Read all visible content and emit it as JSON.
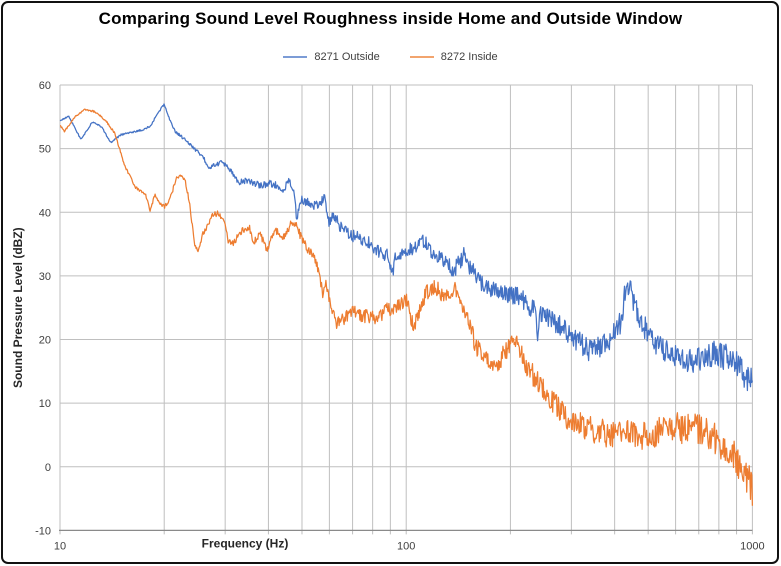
{
  "chart_data": {
    "type": "line",
    "title": "Comparing Sound Level Roughness inside Home and Outside Window",
    "xlabel": "Frequency (Hz)",
    "ylabel": "Sound Pressure Level (dBZ)",
    "x_scale": "log",
    "xlim": [
      10,
      1000
    ],
    "ylim": [
      -10,
      60
    ],
    "x_ticks": [
      10,
      100,
      1000
    ],
    "y_ticks": [
      60,
      50,
      40,
      30,
      20,
      10,
      0,
      -10
    ],
    "grid": true,
    "legend_position": "top",
    "colors": {
      "grid": "#bfbfbf",
      "axis": "#8a8a8a",
      "tick_text": "#404040",
      "title_text": "#000000",
      "background": "#ffffff",
      "frame_border": "#111111"
    },
    "series": [
      {
        "name": "8271 Outside",
        "color": "#4472C4",
        "anchors": [
          [
            10,
            54.4
          ],
          [
            10.6,
            55.1
          ],
          [
            11.5,
            51.4
          ],
          [
            12.4,
            54.2
          ],
          [
            13.2,
            53.4
          ],
          [
            14,
            50.9
          ],
          [
            15,
            52.2
          ],
          [
            16.3,
            52.6
          ],
          [
            17.4,
            53
          ],
          [
            18.3,
            53.6
          ],
          [
            19,
            55.3
          ],
          [
            20,
            57
          ],
          [
            20.7,
            54.7
          ],
          [
            21.5,
            52.7
          ],
          [
            23,
            51.4
          ],
          [
            24,
            50.4
          ],
          [
            26,
            48.5
          ],
          [
            27,
            46.9
          ],
          [
            28,
            47.4
          ],
          [
            29.3,
            47.9
          ],
          [
            31,
            46.8
          ],
          [
            32,
            45.4
          ],
          [
            33,
            44.7
          ],
          [
            35,
            45
          ],
          [
            36.5,
            44.6
          ],
          [
            38,
            44.1
          ],
          [
            40,
            44.6
          ],
          [
            42,
            44.3
          ],
          [
            43.2,
            43.3
          ],
          [
            44.6,
            44
          ],
          [
            46,
            44.9
          ],
          [
            47.5,
            42.6
          ],
          [
            48.3,
            38.9
          ],
          [
            49.2,
            41.5
          ],
          [
            50,
            41.9
          ],
          [
            53,
            41.4
          ],
          [
            56,
            40.9
          ],
          [
            58,
            42.6
          ],
          [
            60,
            38.2
          ],
          [
            61.5,
            39.8
          ],
          [
            63,
            38.8
          ],
          [
            64.5,
            37.6
          ],
          [
            67,
            36.9
          ],
          [
            70,
            36.3
          ],
          [
            74,
            35.9
          ],
          [
            79,
            35.1
          ],
          [
            84,
            33.6
          ],
          [
            88,
            33.2
          ],
          [
            91.5,
            30.8
          ],
          [
            93,
            32.9
          ],
          [
            98,
            33.3
          ],
          [
            103,
            34.1
          ],
          [
            107,
            34.8
          ],
          [
            110,
            35.2
          ],
          [
            113,
            35.4
          ],
          [
            117,
            34.2
          ],
          [
            121,
            33.5
          ],
          [
            125,
            32.8
          ],
          [
            130,
            32.2
          ],
          [
            134,
            31.7
          ],
          [
            137,
            29.6
          ],
          [
            140,
            31.9
          ],
          [
            144,
            32.3
          ],
          [
            148,
            33.8
          ],
          [
            151,
            31.4
          ],
          [
            156,
            30.7
          ],
          [
            160,
            29.8
          ],
          [
            164,
            28.9
          ],
          [
            170,
            28.3
          ],
          [
            175,
            28
          ],
          [
            181,
            27.9
          ],
          [
            187,
            27.8
          ],
          [
            194,
            27.3
          ],
          [
            200,
            27
          ],
          [
            207,
            26.8
          ],
          [
            213,
            26.7
          ],
          [
            221,
            25.8
          ],
          [
            228,
            25.1
          ],
          [
            236,
            24.6
          ],
          [
            240,
            19.8
          ],
          [
            244,
            24.2
          ],
          [
            252,
            23.7
          ],
          [
            260,
            23.3
          ],
          [
            268,
            22.8
          ],
          [
            277,
            22.3
          ],
          [
            286,
            21.6
          ],
          [
            296,
            21
          ],
          [
            306,
            20.2
          ],
          [
            317,
            19.5
          ],
          [
            328,
            18.8
          ],
          [
            339,
            18.3
          ],
          [
            350,
            18.5
          ],
          [
            363,
            18.8
          ],
          [
            375,
            19.3
          ],
          [
            388,
            19.9
          ],
          [
            400,
            21
          ],
          [
            415,
            22.5
          ],
          [
            423,
            25.2
          ],
          [
            429,
            27.2
          ],
          [
            437,
            28.4
          ],
          [
            444,
            28
          ],
          [
            451,
            26.8
          ],
          [
            459,
            25.6
          ],
          [
            467,
            24.3
          ],
          [
            475,
            23.1
          ],
          [
            490,
            21.7
          ],
          [
            509,
            20.4
          ],
          [
            526,
            19.5
          ],
          [
            544,
            18.8
          ],
          [
            563,
            18.2
          ],
          [
            582,
            17.8
          ],
          [
            602,
            17.5
          ],
          [
            623,
            17.2
          ],
          [
            644,
            16.9
          ],
          [
            666,
            16.7
          ],
          [
            688,
            16.9
          ],
          [
            712,
            17.2
          ],
          [
            736,
            17.5
          ],
          [
            762,
            17.8
          ],
          [
            788,
            17.6
          ],
          [
            815,
            17.5
          ],
          [
            843,
            17.1
          ],
          [
            872,
            16.7
          ],
          [
            902,
            15.9
          ],
          [
            933,
            15.1
          ],
          [
            965,
            14.1
          ],
          [
            1000,
            13.2
          ]
        ],
        "noise_envelope": [
          [
            10,
            0.1
          ],
          [
            20,
            0.15
          ],
          [
            30,
            0.4
          ],
          [
            45,
            0.6
          ],
          [
            60,
            0.9
          ],
          [
            80,
            1.0
          ],
          [
            100,
            1.1
          ],
          [
            140,
            1.2
          ],
          [
            200,
            1.4
          ],
          [
            300,
            1.7
          ],
          [
            400,
            1.9
          ],
          [
            600,
            2.0
          ],
          [
            800,
            2.1
          ],
          [
            1000,
            2.2
          ]
        ]
      },
      {
        "name": "8272 Inside",
        "color": "#ED7D31",
        "anchors": [
          [
            10,
            53.7
          ],
          [
            10.3,
            52.7
          ],
          [
            11.05,
            55
          ],
          [
            11.8,
            56.2
          ],
          [
            12.6,
            55.8
          ],
          [
            13.5,
            54.5
          ],
          [
            14.4,
            52.4
          ],
          [
            15.4,
            47.2
          ],
          [
            16.5,
            44
          ],
          [
            17.7,
            42.7
          ],
          [
            18.2,
            40.3
          ],
          [
            18.8,
            42.7
          ],
          [
            19.4,
            41.4
          ],
          [
            20.1,
            40.9
          ],
          [
            20.8,
            42.2
          ],
          [
            21.7,
            45.3
          ],
          [
            22.2,
            45.8
          ],
          [
            23,
            44.8
          ],
          [
            23.7,
            41.4
          ],
          [
            24.5,
            34.6
          ],
          [
            25.1,
            33.8
          ],
          [
            25.9,
            36.7
          ],
          [
            26.8,
            38
          ],
          [
            27.7,
            39.6
          ],
          [
            28.7,
            39.8
          ],
          [
            29.7,
            38.8
          ],
          [
            30.6,
            35.6
          ],
          [
            31.7,
            34.9
          ],
          [
            32.8,
            36.7
          ],
          [
            34,
            37.2
          ],
          [
            35.2,
            37.7
          ],
          [
            36.3,
            35.2
          ],
          [
            37.8,
            36.7
          ],
          [
            39.6,
            33.8
          ],
          [
            41,
            36.2
          ],
          [
            42.5,
            37.2
          ],
          [
            43.7,
            35.6
          ],
          [
            45.3,
            37.2
          ],
          [
            47,
            38.5
          ],
          [
            48,
            38
          ],
          [
            49.1,
            36.7
          ],
          [
            51.4,
            34.6
          ],
          [
            53.2,
            33.8
          ],
          [
            55.2,
            31.5
          ],
          [
            56.5,
            29
          ],
          [
            57.5,
            27.2
          ],
          [
            58.5,
            28.9
          ],
          [
            60,
            26
          ],
          [
            61.5,
            24
          ],
          [
            63,
            22.5
          ],
          [
            65,
            23
          ],
          [
            67,
            23.5
          ],
          [
            69,
            24.1
          ],
          [
            71,
            24.3
          ],
          [
            73,
            24
          ],
          [
            75,
            23.5
          ],
          [
            77,
            23.8
          ],
          [
            79,
            23.6
          ],
          [
            81,
            23.2
          ],
          [
            84,
            23.7
          ],
          [
            86,
            24.3
          ],
          [
            88,
            25
          ],
          [
            90,
            24.6
          ],
          [
            92,
            24.4
          ],
          [
            94,
            25
          ],
          [
            96,
            25.5
          ],
          [
            98,
            26
          ],
          [
            100,
            26.2
          ],
          [
            102,
            24.5
          ],
          [
            105,
            22
          ],
          [
            107,
            23
          ],
          [
            110,
            25
          ],
          [
            112,
            26.3
          ],
          [
            114,
            27.2
          ],
          [
            117,
            27.8
          ],
          [
            121,
            28.4
          ],
          [
            125,
            27.5
          ],
          [
            128,
            26.6
          ],
          [
            130,
            26.3
          ],
          [
            134,
            27.2
          ],
          [
            139,
            27.9
          ],
          [
            144,
            26
          ],
          [
            149,
            23.6
          ],
          [
            154,
            21.5
          ],
          [
            158,
            19.4
          ],
          [
            163,
            18
          ],
          [
            170,
            16.7
          ],
          [
            175,
            16.2
          ],
          [
            181,
            15.7
          ],
          [
            187,
            16.8
          ],
          [
            194,
            18.3
          ],
          [
            200,
            19
          ],
          [
            208,
            19.5
          ],
          [
            215,
            18
          ],
          [
            222,
            16.2
          ],
          [
            230,
            14.8
          ],
          [
            238,
            13.5
          ],
          [
            246,
            12.4
          ],
          [
            254,
            11.4
          ],
          [
            263,
            10.6
          ],
          [
            272,
            9.6
          ],
          [
            281,
            8.6
          ],
          [
            290,
            7.8
          ],
          [
            300,
            7.2
          ],
          [
            310,
            6.8
          ],
          [
            320,
            6.5
          ],
          [
            331,
            6.2
          ],
          [
            342,
            5.9
          ],
          [
            354,
            5.6
          ],
          [
            366,
            5.4
          ],
          [
            378,
            5.2
          ],
          [
            391,
            5.3
          ],
          [
            404,
            5.4
          ],
          [
            416,
            5.8
          ],
          [
            429,
            6.2
          ],
          [
            444,
            5.7
          ],
          [
            459,
            5.2
          ],
          [
            473,
            4.9
          ],
          [
            487,
            4.7
          ],
          [
            506,
            5
          ],
          [
            526,
            5.4
          ],
          [
            542,
            5.9
          ],
          [
            559,
            6.3
          ],
          [
            579,
            6.4
          ],
          [
            600,
            6.5
          ],
          [
            620,
            6.1
          ],
          [
            641,
            5.7
          ],
          [
            662,
            6
          ],
          [
            685,
            6.2
          ],
          [
            710,
            5.8
          ],
          [
            736,
            5.4
          ],
          [
            760,
            4.8
          ],
          [
            786,
            4.2
          ],
          [
            813,
            3.5
          ],
          [
            842,
            2.7
          ],
          [
            871,
            1.9
          ],
          [
            901,
            1.1
          ],
          [
            932,
            -0.2
          ],
          [
            965,
            -1.5
          ],
          [
            983,
            -2.5
          ],
          [
            1000,
            -3.8
          ]
        ],
        "noise_envelope": [
          [
            10,
            0.1
          ],
          [
            16,
            0.2
          ],
          [
            25,
            0.4
          ],
          [
            40,
            0.6
          ],
          [
            55,
            0.8
          ],
          [
            70,
            1.0
          ],
          [
            100,
            1.1
          ],
          [
            150,
            1.4
          ],
          [
            220,
            1.7
          ],
          [
            300,
            1.9
          ],
          [
            400,
            2.2
          ],
          [
            550,
            2.3
          ],
          [
            700,
            2.4
          ],
          [
            1000,
            2.6
          ]
        ]
      }
    ]
  }
}
